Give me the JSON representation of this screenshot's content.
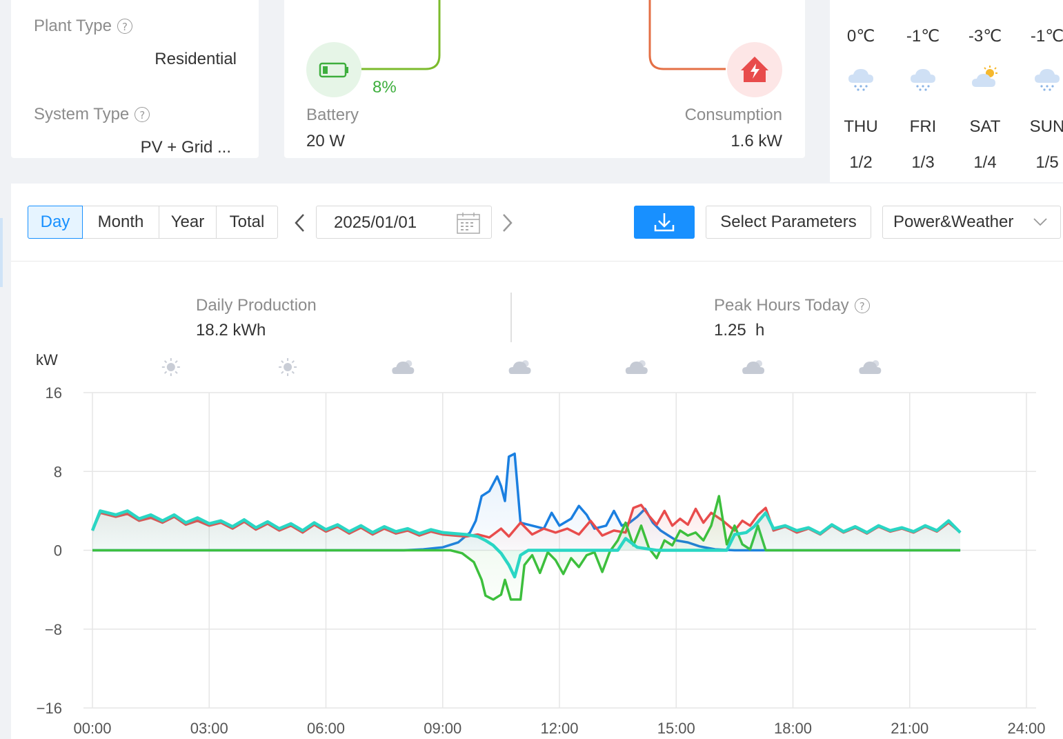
{
  "info": {
    "plant_type_label": "Plant Type",
    "plant_type_value": "Residential",
    "system_type_label": "System Type",
    "system_type_value": "PV + Grid ..."
  },
  "flow": {
    "battery_percent": "8%",
    "battery_label": "Battery",
    "battery_value": "20 W",
    "consumption_label": "Consumption",
    "consumption_value": "1.6 kW"
  },
  "weather": [
    {
      "temp": "0℃",
      "icon": "snow-cloud-icon",
      "day": "THU",
      "date": "1/2"
    },
    {
      "temp": "-1℃",
      "icon": "snow-cloud-icon",
      "day": "FRI",
      "date": "1/3"
    },
    {
      "temp": "-3℃",
      "icon": "partly-sunny-icon",
      "day": "SAT",
      "date": "1/4"
    },
    {
      "temp": "-1℃",
      "icon": "snow-cloud-icon",
      "day": "SUN",
      "date": "1/5"
    }
  ],
  "toolbar": {
    "tabs": [
      {
        "label": "Day",
        "active": true
      },
      {
        "label": "Month",
        "active": false
      },
      {
        "label": "Year",
        "active": false
      },
      {
        "label": "Total",
        "active": false
      }
    ],
    "prev_icon": "chevron-left-icon",
    "next_icon": "chevron-right-icon",
    "date_value": "2025/01/01",
    "download_icon": "download-icon",
    "select_params_label": "Select Parameters",
    "view_select_value": "Power&Weather"
  },
  "stats": {
    "daily_production_label": "Daily Production",
    "daily_production_value": "18.2 kWh",
    "peak_hours_label": "Peak Hours Today",
    "peak_hours_value": "1.25  h"
  },
  "chart_data": {
    "type": "line",
    "ylabel": "kW",
    "ylim": [
      -16,
      16
    ],
    "yticks": [
      "16",
      "8",
      "0",
      "−8",
      "−16"
    ],
    "xlim": [
      0,
      24
    ],
    "xticks": [
      "00:00",
      "03:00",
      "06:00",
      "09:00",
      "12:00",
      "15:00",
      "18:00",
      "21:00",
      "24:00"
    ],
    "grid": true,
    "weather_icons": [
      {
        "hour": 2,
        "icon": "sun-icon"
      },
      {
        "hour": 5,
        "icon": "sun-icon"
      },
      {
        "hour": 8,
        "icon": "partly-cloudy-icon"
      },
      {
        "hour": 11,
        "icon": "partly-cloudy-icon"
      },
      {
        "hour": 14,
        "icon": "partly-cloudy-icon"
      },
      {
        "hour": 17,
        "icon": "partly-cloudy-icon"
      },
      {
        "hour": 20,
        "icon": "partly-cloudy-icon"
      }
    ],
    "colors": {
      "blue": "#1a7fe0",
      "red": "#e84c4c",
      "green": "#3dbf3d",
      "teal": "#2ad6c4"
    },
    "series": [
      {
        "color": "blue",
        "points": [
          [
            0,
            0
          ],
          [
            8,
            0
          ],
          [
            8.5,
            0.1
          ],
          [
            9,
            0.3
          ],
          [
            9.4,
            0.8
          ],
          [
            9.7,
            1.8
          ],
          [
            9.85,
            3
          ],
          [
            10,
            5.5
          ],
          [
            10.2,
            6
          ],
          [
            10.4,
            7.5
          ],
          [
            10.5,
            6.5
          ],
          [
            10.6,
            5
          ],
          [
            10.7,
            9.5
          ],
          [
            10.85,
            9.8
          ],
          [
            11,
            2.8
          ],
          [
            11.3,
            2.5
          ],
          [
            11.6,
            2.2
          ],
          [
            11.8,
            3.8
          ],
          [
            12,
            2.5
          ],
          [
            12.3,
            3.2
          ],
          [
            12.5,
            4.5
          ],
          [
            12.7,
            3.6
          ],
          [
            12.9,
            2.2
          ],
          [
            13.2,
            2.5
          ],
          [
            13.4,
            4
          ],
          [
            13.6,
            2.5
          ],
          [
            13.8,
            2.8
          ],
          [
            14,
            3.4
          ],
          [
            14.2,
            4.2
          ],
          [
            14.4,
            2.8
          ],
          [
            14.6,
            2
          ],
          [
            14.8,
            1.5
          ],
          [
            15,
            1
          ],
          [
            15.3,
            0.8
          ],
          [
            15.6,
            0.4
          ],
          [
            16,
            0.1
          ],
          [
            16.5,
            0
          ],
          [
            22.3,
            0
          ]
        ]
      },
      {
        "color": "red",
        "points": [
          [
            0,
            2
          ],
          [
            0.2,
            3.8
          ],
          [
            0.6,
            3.4
          ],
          [
            0.9,
            3.7
          ],
          [
            1.2,
            3.0
          ],
          [
            1.5,
            3.3
          ],
          [
            1.8,
            2.8
          ],
          [
            2.1,
            3.4
          ],
          [
            2.4,
            2.6
          ],
          [
            2.7,
            3.0
          ],
          [
            3.0,
            2.5
          ],
          [
            3.3,
            2.8
          ],
          [
            3.6,
            2.2
          ],
          [
            3.9,
            2.9
          ],
          [
            4.2,
            2.1
          ],
          [
            4.5,
            2.7
          ],
          [
            4.8,
            2.0
          ],
          [
            5.1,
            2.5
          ],
          [
            5.4,
            1.8
          ],
          [
            5.7,
            2.6
          ],
          [
            6.0,
            1.9
          ],
          [
            6.3,
            2.4
          ],
          [
            6.6,
            1.7
          ],
          [
            6.9,
            2.3
          ],
          [
            7.2,
            1.6
          ],
          [
            7.5,
            2.2
          ],
          [
            7.8,
            1.7
          ],
          [
            8.1,
            2.0
          ],
          [
            8.4,
            1.5
          ],
          [
            8.7,
            1.9
          ],
          [
            9.0,
            1.6
          ],
          [
            9.3,
            1.5
          ],
          [
            9.6,
            1.4
          ],
          [
            9.9,
            1.6
          ],
          [
            10.2,
            1.3
          ],
          [
            10.5,
            2.2
          ],
          [
            10.7,
            1.4
          ],
          [
            11.0,
            2.8
          ],
          [
            11.3,
            1.6
          ],
          [
            11.6,
            2.2
          ],
          [
            11.9,
            1.8
          ],
          [
            12.2,
            2.2
          ],
          [
            12.5,
            1.6
          ],
          [
            12.8,
            3.0
          ],
          [
            13.1,
            1.5
          ],
          [
            13.4,
            2.0
          ],
          [
            13.7,
            1.8
          ],
          [
            13.9,
            4.3
          ],
          [
            14.1,
            4.6
          ],
          [
            14.3,
            3.5
          ],
          [
            14.5,
            2.6
          ],
          [
            14.7,
            4.0
          ],
          [
            14.9,
            2.5
          ],
          [
            15.1,
            3.2
          ],
          [
            15.3,
            2.6
          ],
          [
            15.5,
            4.2
          ],
          [
            15.7,
            2.8
          ],
          [
            15.9,
            3.8
          ],
          [
            16.2,
            3.0
          ],
          [
            16.5,
            2.0
          ],
          [
            16.7,
            3.0
          ],
          [
            16.9,
            2.5
          ],
          [
            17.1,
            3.6
          ],
          [
            17.3,
            4.3
          ],
          [
            17.5,
            2.0
          ],
          [
            17.8,
            2.4
          ],
          [
            18.1,
            1.8
          ],
          [
            18.4,
            2.2
          ],
          [
            18.7,
            1.6
          ],
          [
            19.0,
            2.5
          ],
          [
            19.3,
            1.8
          ],
          [
            19.6,
            2.3
          ],
          [
            19.9,
            1.7
          ],
          [
            20.2,
            2.4
          ],
          [
            20.5,
            1.9
          ],
          [
            20.8,
            2.2
          ],
          [
            21.1,
            1.8
          ],
          [
            21.4,
            2.4
          ],
          [
            21.7,
            1.9
          ],
          [
            22.0,
            2.8
          ],
          [
            22.3,
            1.8
          ]
        ]
      },
      {
        "color": "green",
        "points": [
          [
            0,
            0
          ],
          [
            9.2,
            0
          ],
          [
            9.5,
            -0.3
          ],
          [
            9.8,
            -1.2
          ],
          [
            10.0,
            -3.0
          ],
          [
            10.1,
            -4.6
          ],
          [
            10.3,
            -5.0
          ],
          [
            10.5,
            -4.5
          ],
          [
            10.6,
            -3.0
          ],
          [
            10.75,
            -5.0
          ],
          [
            11.0,
            -5.0
          ],
          [
            11.1,
            -1.5
          ],
          [
            11.3,
            -0.5
          ],
          [
            11.5,
            -2.3
          ],
          [
            11.7,
            -0.2
          ],
          [
            11.9,
            -1.0
          ],
          [
            12.1,
            -2.4
          ],
          [
            12.3,
            -0.8
          ],
          [
            12.5,
            -1.7
          ],
          [
            12.7,
            -0.5
          ],
          [
            12.9,
            -0.2
          ],
          [
            13.1,
            -2.2
          ],
          [
            13.3,
            -0.1
          ],
          [
            13.5,
            1.0
          ],
          [
            13.7,
            2.8
          ],
          [
            13.9,
            0.5
          ],
          [
            14.1,
            2.5
          ],
          [
            14.3,
            0.2
          ],
          [
            14.5,
            -0.8
          ],
          [
            14.7,
            1.0
          ],
          [
            14.9,
            0.5
          ],
          [
            15.1,
            2.0
          ],
          [
            15.3,
            1.5
          ],
          [
            15.5,
            1.8
          ],
          [
            15.7,
            1.0
          ],
          [
            15.9,
            2.5
          ],
          [
            16.1,
            5.5
          ],
          [
            16.3,
            0.6
          ],
          [
            16.5,
            2.5
          ],
          [
            16.7,
            0.6
          ],
          [
            16.9,
            0.1
          ],
          [
            17.1,
            2.5
          ],
          [
            17.3,
            0
          ],
          [
            22.3,
            0
          ]
        ]
      },
      {
        "color": "teal",
        "points": [
          [
            0,
            2
          ],
          [
            0.2,
            4.0
          ],
          [
            0.6,
            3.6
          ],
          [
            0.9,
            4.0
          ],
          [
            1.2,
            3.2
          ],
          [
            1.5,
            3.6
          ],
          [
            1.8,
            3.0
          ],
          [
            2.1,
            3.6
          ],
          [
            2.4,
            2.8
          ],
          [
            2.7,
            3.3
          ],
          [
            3.0,
            2.7
          ],
          [
            3.3,
            3.0
          ],
          [
            3.6,
            2.4
          ],
          [
            3.9,
            3.1
          ],
          [
            4.2,
            2.3
          ],
          [
            4.5,
            2.9
          ],
          [
            4.8,
            2.2
          ],
          [
            5.1,
            2.7
          ],
          [
            5.4,
            2.0
          ],
          [
            5.7,
            2.8
          ],
          [
            6.0,
            2.1
          ],
          [
            6.3,
            2.6
          ],
          [
            6.6,
            1.9
          ],
          [
            6.9,
            2.5
          ],
          [
            7.2,
            1.8
          ],
          [
            7.5,
            2.4
          ],
          [
            7.8,
            1.9
          ],
          [
            8.1,
            2.2
          ],
          [
            8.4,
            1.7
          ],
          [
            8.7,
            2.1
          ],
          [
            9.0,
            1.8
          ],
          [
            9.3,
            1.7
          ],
          [
            9.6,
            1.6
          ],
          [
            9.9,
            1.4
          ],
          [
            10.1,
            1.0
          ],
          [
            10.3,
            0.5
          ],
          [
            10.5,
            -0.3
          ],
          [
            10.7,
            -1.5
          ],
          [
            10.85,
            -2.7
          ],
          [
            11.0,
            -0.5
          ],
          [
            11.2,
            0
          ],
          [
            13.5,
            0
          ],
          [
            13.7,
            1.2
          ],
          [
            14.0,
            0.3
          ],
          [
            14.5,
            0
          ],
          [
            16.3,
            0
          ],
          [
            16.5,
            1.6
          ],
          [
            16.8,
            1.8
          ],
          [
            17.0,
            2.4
          ],
          [
            17.3,
            3.8
          ],
          [
            17.5,
            2.2
          ],
          [
            17.8,
            2.5
          ],
          [
            18.1,
            2.0
          ],
          [
            18.4,
            2.3
          ],
          [
            18.7,
            1.7
          ],
          [
            19.0,
            2.6
          ],
          [
            19.3,
            1.9
          ],
          [
            19.6,
            2.4
          ],
          [
            19.9,
            1.8
          ],
          [
            20.2,
            2.5
          ],
          [
            20.5,
            2.0
          ],
          [
            20.8,
            2.3
          ],
          [
            21.1,
            1.9
          ],
          [
            21.4,
            2.5
          ],
          [
            21.7,
            2.0
          ],
          [
            22.0,
            3.0
          ],
          [
            22.3,
            1.8
          ]
        ]
      }
    ]
  }
}
